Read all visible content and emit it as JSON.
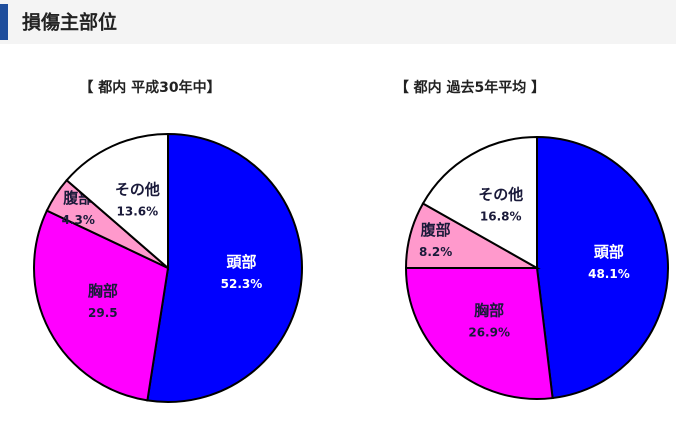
{
  "header": {
    "title": "損傷主部位"
  },
  "chart_data": [
    {
      "type": "pie",
      "title": "【 都内  平成30年中】",
      "categories": [
        "頭部",
        "胸部",
        "腹部",
        "その他"
      ],
      "values": [
        52.3,
        29.5,
        4.3,
        13.6
      ],
      "value_labels": [
        "52.3%",
        "29.5",
        "4.3%",
        "13.6%"
      ],
      "colors": [
        "#0000ff",
        "#ff00ff",
        "#ff99cc",
        "#ffffff"
      ]
    },
    {
      "type": "pie",
      "title": "【 都内  過去5年平均 】",
      "categories": [
        "頭部",
        "胸部",
        "腹部",
        "その他"
      ],
      "values": [
        48.1,
        26.9,
        8.2,
        16.8
      ],
      "value_labels": [
        "48.1%",
        "26.9%",
        "8.2%",
        "16.8%"
      ],
      "colors": [
        "#0000ff",
        "#ff00ff",
        "#ff99cc",
        "#ffffff"
      ]
    }
  ]
}
